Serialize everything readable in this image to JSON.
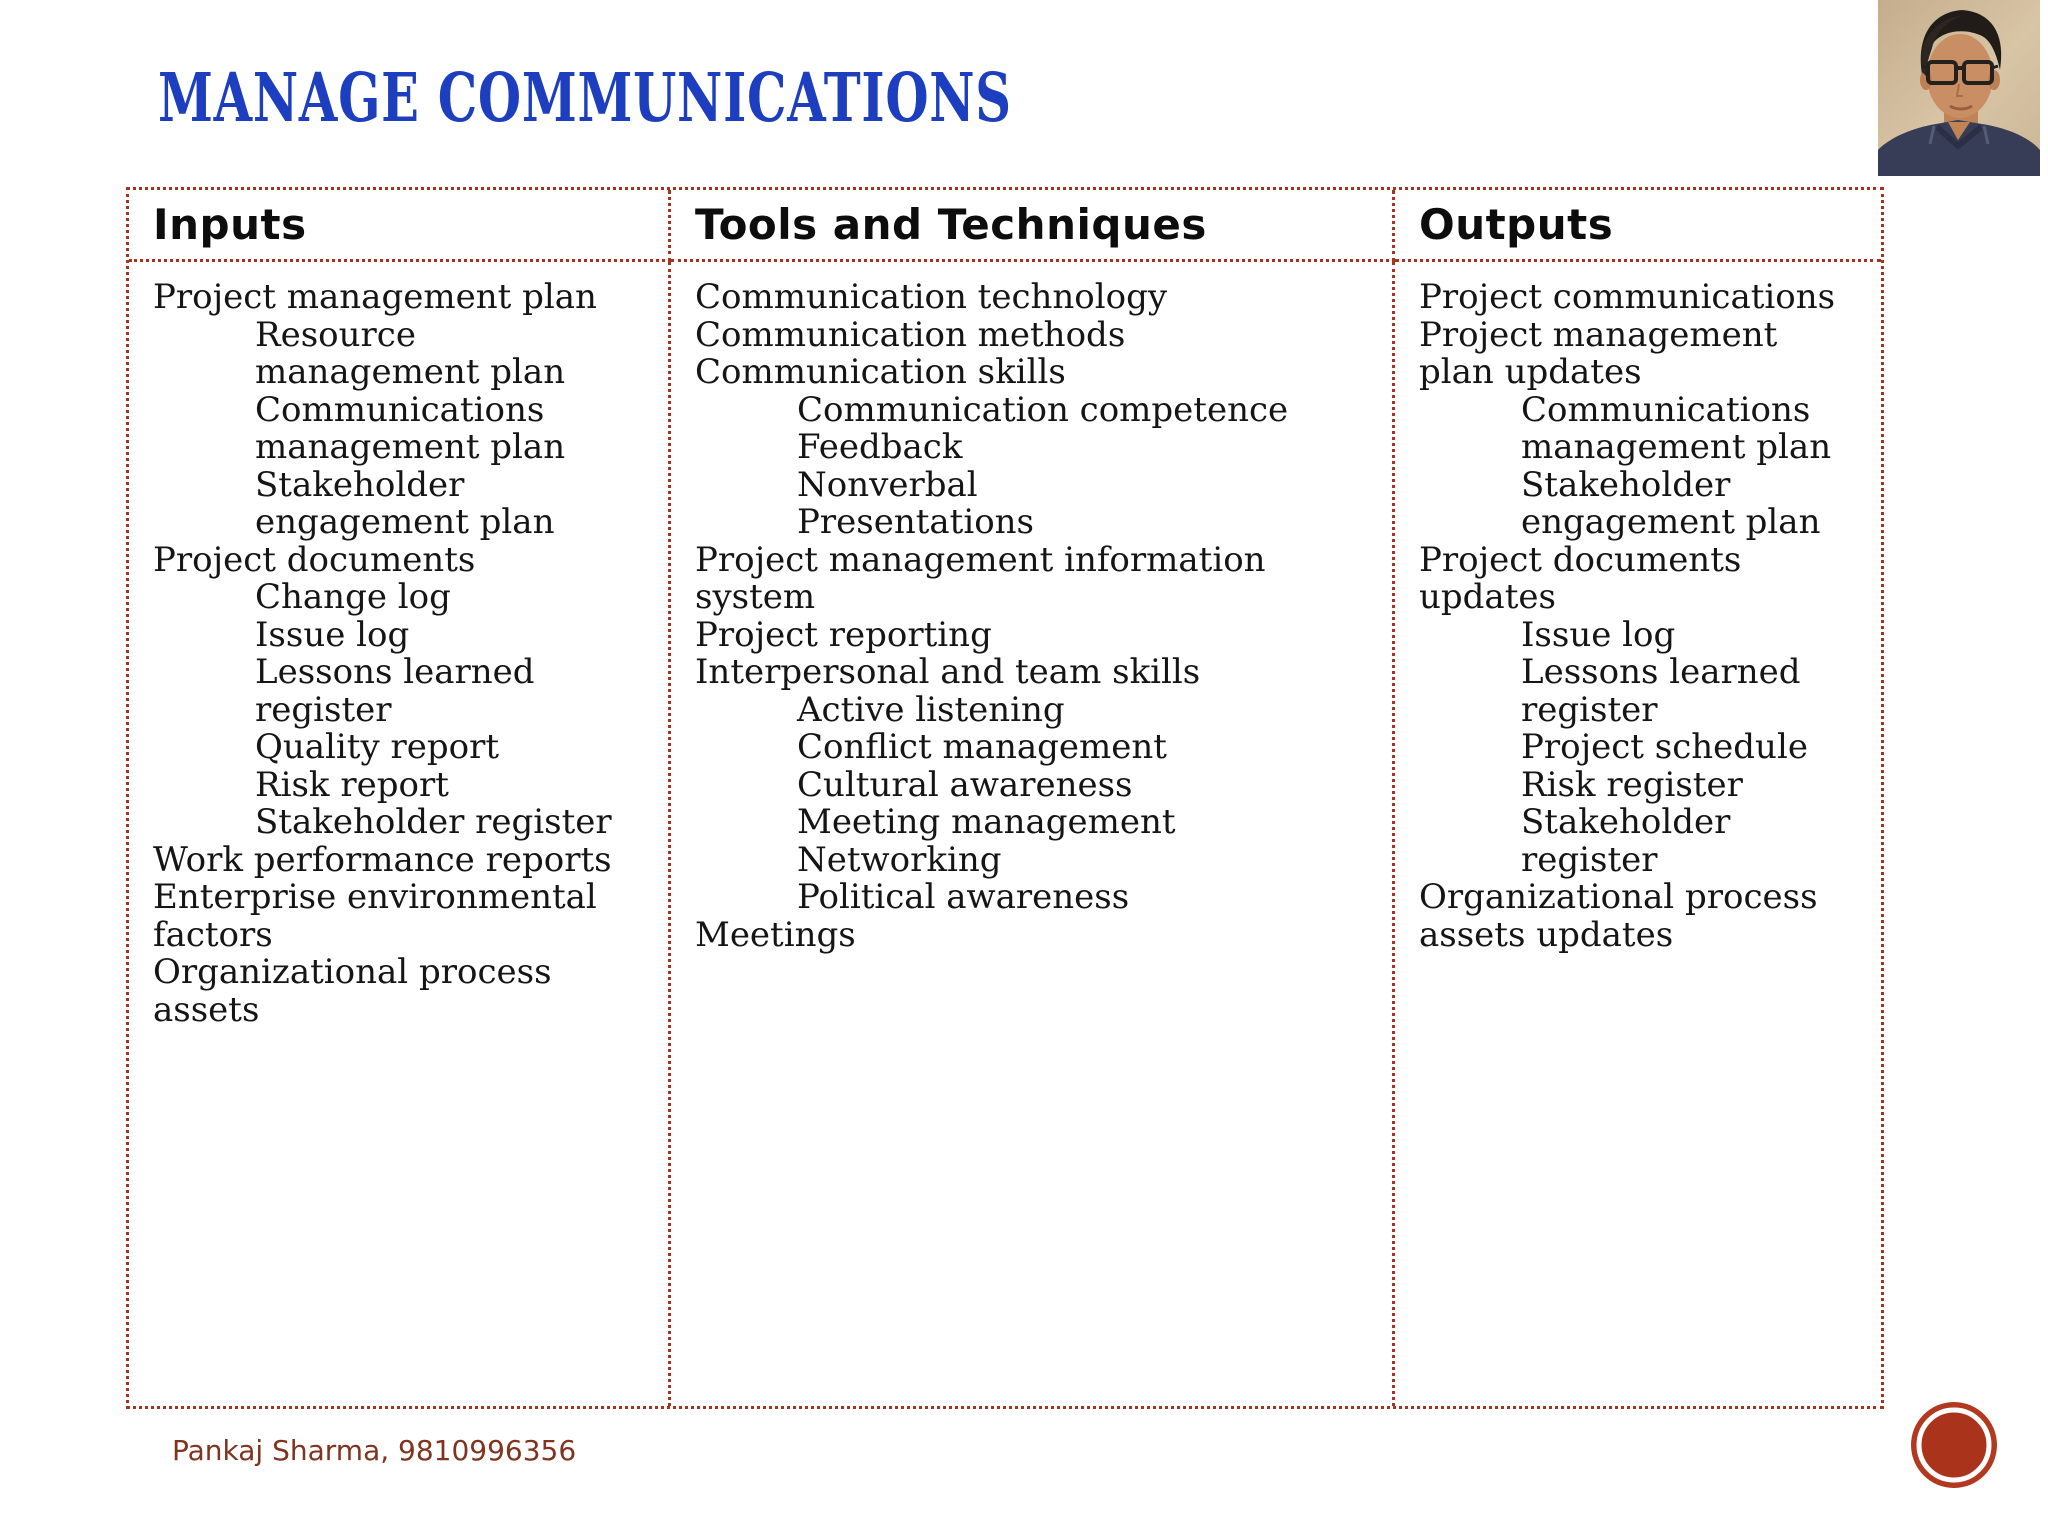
{
  "title": "MANAGE COMMUNICATIONS",
  "footer": {
    "credit": "Pankaj Sharma, 9810996356"
  },
  "colors": {
    "title_blue": "#1d3fbf",
    "border_red": "#a8321e",
    "logo_red": "#b23920",
    "credit_brown": "#80331f",
    "body_text": "#151515"
  },
  "icons": {
    "presenter_photo": "person-portrait",
    "logo": "red-circle-badge"
  },
  "table": {
    "columns": [
      {
        "header": "Inputs",
        "lines": [
          {
            "text": "Project management plan",
            "indent": 0
          },
          {
            "text": "Resource",
            "indent": 1
          },
          {
            "text": "management plan",
            "indent": 1
          },
          {
            "text": "Communications",
            "indent": 1
          },
          {
            "text": "management plan",
            "indent": 1
          },
          {
            "text": "Stakeholder",
            "indent": 1
          },
          {
            "text": "engagement plan",
            "indent": 1
          },
          {
            "text": "Project documents",
            "indent": 0
          },
          {
            "text": "Change log",
            "indent": 1
          },
          {
            "text": "Issue log",
            "indent": 1
          },
          {
            "text": "Lessons learned",
            "indent": 1
          },
          {
            "text": "register",
            "indent": 1
          },
          {
            "text": "Quality report",
            "indent": 1
          },
          {
            "text": "Risk report",
            "indent": 1
          },
          {
            "text": "Stakeholder register",
            "indent": 1
          },
          {
            "text": "Work performance reports",
            "indent": 0
          },
          {
            "text": "Enterprise environmental",
            "indent": 0
          },
          {
            "text": "factors",
            "indent": 0
          },
          {
            "text": "Organizational process",
            "indent": 0
          },
          {
            "text": "assets",
            "indent": 0
          }
        ]
      },
      {
        "header": "Tools and Techniques",
        "lines": [
          {
            "text": "Communication technology",
            "indent": 0
          },
          {
            "text": "Communication methods",
            "indent": 0
          },
          {
            "text": "Communication skills",
            "indent": 0
          },
          {
            "text": "Communication competence",
            "indent": 1
          },
          {
            "text": "Feedback",
            "indent": 1
          },
          {
            "text": "Nonverbal",
            "indent": 1
          },
          {
            "text": "Presentations",
            "indent": 1
          },
          {
            "text": "Project management information",
            "indent": 0
          },
          {
            "text": "system",
            "indent": 0
          },
          {
            "text": "Project reporting",
            "indent": 0
          },
          {
            "text": "Interpersonal and team skills",
            "indent": 0
          },
          {
            "text": "Active listening",
            "indent": 1
          },
          {
            "text": "Conflict management",
            "indent": 1
          },
          {
            "text": "Cultural awareness",
            "indent": 1
          },
          {
            "text": "Meeting management",
            "indent": 1
          },
          {
            "text": "Networking",
            "indent": 1
          },
          {
            "text": "Political awareness",
            "indent": 1
          },
          {
            "text": "Meetings",
            "indent": 0
          }
        ]
      },
      {
        "header": "Outputs",
        "lines": [
          {
            "text": "Project communications",
            "indent": 0
          },
          {
            "text": "Project management",
            "indent": 0
          },
          {
            "text": "plan updates",
            "indent": 0
          },
          {
            "text": "Communications",
            "indent": 1
          },
          {
            "text": "management plan",
            "indent": 1
          },
          {
            "text": "Stakeholder",
            "indent": 1
          },
          {
            "text": "engagement plan",
            "indent": 1
          },
          {
            "text": "Project documents",
            "indent": 0
          },
          {
            "text": "updates",
            "indent": 0
          },
          {
            "text": "Issue log",
            "indent": 1
          },
          {
            "text": "Lessons learned",
            "indent": 1
          },
          {
            "text": "register",
            "indent": 1
          },
          {
            "text": "Project schedule",
            "indent": 1
          },
          {
            "text": "Risk register",
            "indent": 1
          },
          {
            "text": "Stakeholder",
            "indent": 1
          },
          {
            "text": "register",
            "indent": 1
          },
          {
            "text": "Organizational process",
            "indent": 0
          },
          {
            "text": "assets updates",
            "indent": 0
          }
        ]
      }
    ]
  }
}
